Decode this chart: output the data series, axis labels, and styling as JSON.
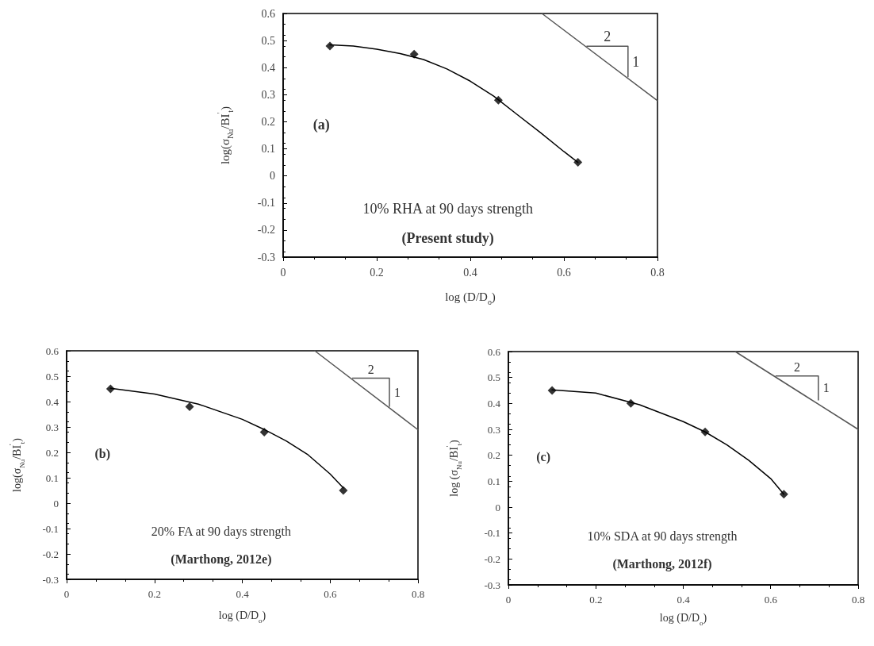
{
  "chart_data": [
    {
      "type": "scatter",
      "xlabel": "log (D/D$_{o}$)",
      "ylabel": "log(σ$_{Nu}$/BI$^{'}$$_{t}$)",
      "xlim": [
        0,
        0.8
      ],
      "ylim": [
        -0.3,
        0.6
      ],
      "xticks": [
        0,
        0.2,
        0.4,
        0.6,
        0.8
      ],
      "yticks": [
        -0.3,
        -0.2,
        -0.1,
        0,
        0.1,
        0.2,
        0.3,
        0.4,
        0.5,
        0.6
      ],
      "grid": false,
      "annotations": [
        "(a)",
        "10% RHA at 90 days strength",
        "(Present study)",
        "2",
        "1"
      ],
      "series": [
        {
          "marker": "diamond",
          "color": "#000000",
          "x": [
            0.1,
            0.28,
            0.46,
            0.63
          ],
          "values": [
            0.48,
            0.45,
            0.28,
            0.05
          ]
        },
        {
          "type": "line",
          "marker": "none",
          "line_style": "solid",
          "color": "#000000",
          "x": [
            0.1,
            0.15,
            0.2,
            0.25,
            0.3,
            0.35,
            0.4,
            0.45,
            0.5,
            0.55,
            0.6,
            0.63
          ],
          "values": [
            0.484,
            0.48,
            0.468,
            0.452,
            0.43,
            0.395,
            0.35,
            0.295,
            0.227,
            0.16,
            0.09,
            0.05
          ]
        },
        {
          "type": "line",
          "marker": "none",
          "line_style": "solid",
          "color": "#555555",
          "x": [
            0.553,
            0.8
          ],
          "values": [
            0.6,
            0.278
          ]
        },
        {
          "type": "line",
          "marker": "none",
          "line_style": "solid",
          "color": "#555555",
          "x": [
            0.649,
            0.737,
            0.737
          ],
          "values": [
            0.479,
            0.479,
            0.366
          ]
        }
      ]
    },
    {
      "type": "scatter",
      "xlabel": "log (D/D$_{o}$)",
      "ylabel": "log(σ$_{Nu}$/BI$^{'}$$_{t}$)",
      "xlim": [
        0,
        0.8
      ],
      "ylim": [
        -0.3,
        0.6
      ],
      "xticks": [
        0,
        0.2,
        0.4,
        0.6,
        0.8
      ],
      "yticks": [
        -0.3,
        -0.2,
        -0.1,
        0,
        0.1,
        0.2,
        0.3,
        0.4,
        0.5,
        0.6
      ],
      "grid": false,
      "annotations": [
        "(b)",
        "20% FA at 90 days strength",
        "(Marthong, 2012e)",
        "2",
        "1"
      ],
      "series": [
        {
          "marker": "diamond",
          "color": "#000000",
          "x": [
            0.1,
            0.28,
            0.45,
            0.63
          ],
          "values": [
            0.45,
            0.38,
            0.28,
            0.05
          ]
        },
        {
          "type": "line",
          "marker": "none",
          "line_style": "solid",
          "color": "#000000",
          "x": [
            0.1,
            0.2,
            0.3,
            0.4,
            0.45,
            0.5,
            0.55,
            0.6,
            0.63
          ],
          "values": [
            0.452,
            0.43,
            0.39,
            0.33,
            0.29,
            0.245,
            0.19,
            0.115,
            0.06
          ]
        },
        {
          "type": "line",
          "marker": "none",
          "line_style": "solid",
          "color": "#555555",
          "x": [
            0.565,
            0.8
          ],
          "values": [
            0.6,
            0.289
          ]
        },
        {
          "type": "line",
          "marker": "none",
          "line_style": "solid",
          "color": "#555555",
          "x": [
            0.651,
            0.735,
            0.735
          ],
          "values": [
            0.492,
            0.492,
            0.381
          ]
        }
      ]
    },
    {
      "type": "scatter",
      "xlabel": "log (D/D$_{o}$)",
      "ylabel": "log (σ$_{Nu}$/BI$^{'}$$_{t}$)",
      "xlim": [
        0,
        0.8
      ],
      "ylim": [
        -0.3,
        0.6
      ],
      "xticks": [
        0,
        0.2,
        0.4,
        0.6,
        0.8
      ],
      "yticks": [
        -0.3,
        -0.2,
        -0.1,
        0,
        0.1,
        0.2,
        0.3,
        0.4,
        0.5,
        0.6
      ],
      "grid": false,
      "annotations": [
        "(c)",
        "10% SDA at 90 days strength",
        "(Marthong, 2012f)",
        "2",
        "1"
      ],
      "series": [
        {
          "marker": "diamond",
          "color": "#000000",
          "x": [
            0.1,
            0.28,
            0.45,
            0.63
          ],
          "values": [
            0.45,
            0.4,
            0.29,
            0.05
          ]
        },
        {
          "type": "line",
          "marker": "none",
          "line_style": "solid",
          "color": "#000000",
          "x": [
            0.1,
            0.2,
            0.3,
            0.4,
            0.45,
            0.5,
            0.55,
            0.6,
            0.63
          ],
          "values": [
            0.452,
            0.44,
            0.395,
            0.33,
            0.29,
            0.24,
            0.18,
            0.11,
            0.05
          ]
        },
        {
          "type": "line",
          "marker": "none",
          "line_style": "solid",
          "color": "#555555",
          "x": [
            0.519,
            0.8
          ],
          "values": [
            0.6,
            0.3
          ]
        },
        {
          "type": "line",
          "marker": "none",
          "line_style": "solid",
          "color": "#555555",
          "x": [
            0.612,
            0.709,
            0.709
          ],
          "values": [
            0.506,
            0.506,
            0.413
          ]
        }
      ]
    }
  ]
}
